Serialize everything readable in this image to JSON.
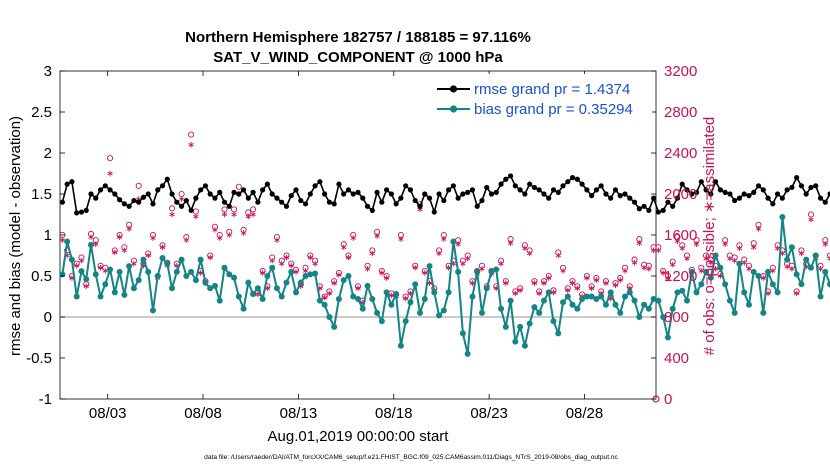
{
  "chart_data": {
    "type": "line",
    "title_line1": "Northern Hemisphere 182757 / 188185 = 97.116%",
    "title_line2": "SAT_V_WIND_COMPONENT @ 1000 hPa",
    "ylabel_left": "rmse and bias (model - observation)",
    "ylabel_right": "# of obs: o=possible; ∗=assimilated",
    "xlabel": "Aug.01,2019 00:00:00 start",
    "footer": "data file: /Users/raeder/DAI/ATM_forcXX/CAM6_setup/f.e21.FHIST_BGC.f09_025.CAM6assim.011/Diags_NTrS_2019-08/obs_diag_output.nc",
    "ylim_left": [
      -1,
      3
    ],
    "ylim_right": [
      0,
      3200
    ],
    "xlim_days": [
      0.5,
      31.75
    ],
    "left_ticks": [
      -1,
      -0.5,
      0,
      0.5,
      1,
      1.5,
      2,
      2.5,
      3
    ],
    "left_tick_labels": [
      "-1",
      "-0.5",
      "0",
      "0.5",
      "1",
      "1.5",
      "2",
      "2.5",
      "3"
    ],
    "right_ticks": [
      0,
      400,
      800,
      1200,
      1600,
      2000,
      2400,
      2800,
      3200
    ],
    "right_tick_labels": [
      "0",
      "400",
      "800",
      "1200",
      "1600",
      "2000",
      "2400",
      "2800",
      "3200"
    ],
    "x_ticks": [
      3,
      8,
      13,
      18,
      23,
      28
    ],
    "x_tick_labels": [
      "08/03",
      "08/08",
      "08/13",
      "08/18",
      "08/23",
      "08/28"
    ],
    "legend": {
      "position": "top-right",
      "rmse_label": "rmse grand pr = 1.4374",
      "bias_label": "bias grand pr = 0.35294"
    },
    "colors": {
      "rmse": "#000000",
      "bias": "#138585",
      "obs": "#cc1155",
      "legend_text": "#1a4fd6",
      "zero_line": "#bbbbbb"
    },
    "start_day": 0.625,
    "step_days": 0.25,
    "series": [
      {
        "name": "rmse",
        "axis": "left",
        "values": [
          1.4,
          1.62,
          1.65,
          1.27,
          1.28,
          1.3,
          1.5,
          1.45,
          1.55,
          1.6,
          1.55,
          1.5,
          1.43,
          1.38,
          1.35,
          1.42,
          1.4,
          1.46,
          1.5,
          1.38,
          1.55,
          1.6,
          1.68,
          1.5,
          1.4,
          1.35,
          1.42,
          1.3,
          1.45,
          1.55,
          1.6,
          1.5,
          1.45,
          1.52,
          1.4,
          1.35,
          1.52,
          1.5,
          1.55,
          1.45,
          1.52,
          1.4,
          1.55,
          1.62,
          1.5,
          1.45,
          1.4,
          1.35,
          1.48,
          1.55,
          1.42,
          1.38,
          1.5,
          1.6,
          1.65,
          1.5,
          1.4,
          1.38,
          1.62,
          1.5,
          1.55,
          1.5,
          1.52,
          1.45,
          1.35,
          1.3,
          1.52,
          1.4,
          1.55,
          1.5,
          1.38,
          1.45,
          1.6,
          1.55,
          1.42,
          1.35,
          1.5,
          1.45,
          1.28,
          1.5,
          1.42,
          1.55,
          1.6,
          1.45,
          1.5,
          1.52,
          1.55,
          1.35,
          1.42,
          1.58,
          1.5,
          1.52,
          1.62,
          1.68,
          1.72,
          1.6,
          1.55,
          1.5,
          1.62,
          1.58,
          1.55,
          1.5,
          1.45,
          1.55,
          1.52,
          1.6,
          1.65,
          1.7,
          1.68,
          1.62,
          1.55,
          1.48,
          1.55,
          1.6,
          1.5,
          1.45,
          1.55,
          1.48,
          1.5,
          1.45,
          1.4,
          1.32,
          1.35,
          1.3,
          1.45,
          1.28,
          1.3,
          1.4,
          1.35,
          1.45,
          1.62,
          1.55,
          1.5,
          1.52,
          1.65,
          1.55,
          1.5,
          1.65,
          1.55,
          1.52,
          1.5,
          1.42,
          1.45,
          1.5,
          1.48,
          1.52,
          1.6,
          1.55,
          1.45,
          1.38,
          1.5,
          1.45,
          1.55,
          1.58,
          1.7,
          1.6,
          1.5,
          1.58,
          1.6,
          1.45,
          1.4,
          1.5,
          1.48,
          1.55,
          1.5,
          1.58,
          1.6,
          1.45,
          1.42,
          1.48,
          1.45,
          1.5,
          1.58,
          1.5,
          1.4,
          1.52,
          1.38,
          1.55,
          1.6,
          1.5,
          1.42,
          1.48,
          1.45,
          1.4,
          1.38,
          1.42,
          1.35,
          1.5,
          1.48,
          1.52,
          1.4,
          1.48,
          1.6,
          1.65,
          1.58,
          1.55,
          1.5,
          1.6,
          1.45,
          1.52,
          1.5,
          1.45,
          1.45
        ]
      },
      {
        "name": "bias",
        "axis": "left",
        "values": [
          0.52,
          0.92,
          0.7,
          0.25,
          0.56,
          0.46,
          0.88,
          0.52,
          0.25,
          0.4,
          0.58,
          0.3,
          0.55,
          0.27,
          0.62,
          0.35,
          0.45,
          0.7,
          0.55,
          0.08,
          0.5,
          0.72,
          0.65,
          0.35,
          0.55,
          0.7,
          0.5,
          0.55,
          0.45,
          0.7,
          0.42,
          0.35,
          0.38,
          0.2,
          0.6,
          0.52,
          0.48,
          0.25,
          0.1,
          0.42,
          0.28,
          0.35,
          0.22,
          0.5,
          0.6,
          0.35,
          0.25,
          0.42,
          0.55,
          0.3,
          0.42,
          0.5,
          0.52,
          0.53,
          0.2,
          0.15,
          0.0,
          -0.12,
          0.22,
          0.45,
          0.5,
          0.25,
          0.22,
          0.1,
          0.38,
          0.22,
          0.05,
          -0.05,
          0.3,
          0.15,
          0.28,
          -0.35,
          -0.05,
          0.18,
          0.4,
          0.05,
          0.22,
          0.62,
          0.3,
          0.02,
          0.08,
          0.3,
          0.92,
          0.55,
          -0.2,
          -0.45,
          0.25,
          0.55,
          0.05,
          0.35,
          0.55,
          0.58,
          0.1,
          -0.12,
          0.2,
          -0.3,
          -0.12,
          -0.35,
          -0.08,
          0.12,
          0.05,
          0.2,
          0.3,
          -0.05,
          -0.2,
          0.18,
          0.25,
          0.15,
          0.1,
          0.22,
          0.25,
          0.25,
          0.22,
          0.25,
          0.15,
          0.3,
          0.15,
          0.05,
          0.25,
          0.3,
          0.2,
          0.0,
          0.15,
          0.1,
          0.22,
          0.2,
          0.0,
          -0.25,
          0.1,
          0.3,
          0.32,
          0.2,
          0.55,
          0.3,
          0.4,
          0.55,
          0.48,
          0.75,
          0.6,
          0.4,
          0.2,
          0.05,
          0.65,
          0.3,
          0.15,
          0.55,
          0.5,
          0.05,
          0.55,
          0.4,
          0.3,
          1.22,
          0.7,
          0.85,
          0.52,
          0.4,
          0.7,
          0.6,
          0.75,
          0.25,
          0.55,
          0.4,
          0.15,
          0.5,
          0.1,
          0.4,
          0.55,
          0.2,
          0.45,
          0.3,
          0.05,
          0.55,
          0.35,
          0.3,
          0.35,
          0.2,
          0.55,
          0.4,
          0.25,
          0.05,
          0.55,
          0.4,
          0.75,
          0.5,
          0.3,
          0.15,
          0.55,
          0.65,
          0.3,
          0.22,
          0.95,
          0.55,
          0.35,
          0.5,
          0.55,
          0.28,
          0.2,
          0.3,
          0.82,
          0.7,
          0.45,
          0.22,
          0.55,
          0.4,
          0.65,
          0.45,
          0.52
        ]
      },
      {
        "name": "possible",
        "axis": "right",
        "values": [
          1600,
          1450,
          1200,
          1320,
          1380,
          1120,
          1610,
          1550,
          1300,
          1280,
          2350,
          1450,
          1600,
          1480,
          1700,
          1350,
          2080,
          1320,
          1420,
          1600,
          1200,
          1500,
          1330,
          1860,
          1320,
          2000,
          1580,
          2580,
          1830,
          1250,
          1150,
          1400,
          1680,
          1600,
          1850,
          1630,
          1850,
          2070,
          1650,
          1820,
          1850,
          1050,
          1250,
          1100,
          1380,
          1580,
          1350,
          1400,
          1320,
          1260,
          1120,
          1280,
          1400,
          1350,
          1100,
          1000,
          1050,
          1150,
          1230,
          1510,
          1400,
          1600,
          1100,
          960,
          1300,
          1450,
          1630,
          1250,
          1200,
          1030,
          1020,
          1600,
          1000,
          1050,
          1300,
          1900,
          1250,
          1150,
          1080,
          1450,
          1600,
          1300,
          1350,
          1550,
          1350,
          1400,
          1150,
          1250,
          1300,
          1100,
          1250,
          1100,
          1350,
          1150,
          1560,
          1050,
          1080,
          1500,
          1450,
          1150,
          1050,
          1150,
          1200,
          1060,
          1430,
          1280,
          1080,
          1150,
          1100,
          1020,
          1200,
          1100,
          1180,
          1050,
          1150,
          1000,
          1130,
          1180,
          1280,
          1100,
          1360,
          1560,
          1310,
          1300,
          1480,
          1480,
          1250,
          1200,
          1340,
          1580,
          1500,
          1400,
          1260,
          1550,
          1280,
          1400,
          1360,
          1300,
          1220,
          1550,
          1400,
          1380,
          1500,
          1360,
          1300,
          1520,
          1700,
          1200,
          1050,
          1280,
          1500,
          1450,
          1320,
          1300,
          1050,
          1450,
          1320,
          1800,
          1400,
          1300,
          1550,
          1400,
          1350,
          1500,
          1900,
          1680,
          1300,
          1600,
          1350,
          1320,
          1400,
          1520,
          1250,
          1500,
          1380,
          1500,
          1450,
          1400,
          1600,
          1250,
          1550,
          1530,
          1200,
          1580,
          1700,
          1550,
          1480,
          1300,
          1800,
          1600,
          1700,
          1500,
          1400,
          1500,
          2000,
          2200,
          1500,
          1300,
          1500,
          1400,
          1600,
          1500,
          1550,
          2100,
          1800,
          1700,
          1550,
          1400,
          1450,
          1900
        ]
      },
      {
        "name": "assimilated",
        "axis": "right",
        "values": [
          1550,
          1400,
          1180,
          1300,
          1350,
          1100,
          1580,
          1510,
          1280,
          1250,
          2200,
          1430,
          1580,
          1450,
          1660,
          1320,
          1950,
          1300,
          1400,
          1570,
          1180,
          1480,
          1300,
          1800,
          1300,
          1950,
          1550,
          2480,
          1780,
          1230,
          1130,
          1380,
          1650,
          1570,
          1800,
          1600,
          1800,
          2000,
          1620,
          1780,
          1800,
          1020,
          1230,
          1080,
          1350,
          1550,
          1320,
          1380,
          1300,
          1240,
          1100,
          1250,
          1380,
          1320,
          1080,
          990,
          1030,
          1130,
          1210,
          1480,
          1380,
          1570,
          1080,
          940,
          1270,
          1420,
          1590,
          1230,
          1180,
          1010,
          1000,
          1560,
          980,
          1030,
          1280,
          1850,
          1230,
          1130,
          1060,
          1420,
          1560,
          1280,
          1320,
          1510,
          1320,
          1370,
          1130,
          1220,
          1270,
          1080,
          1220,
          1080,
          1320,
          1130,
          1520,
          1030,
          1060,
          1470,
          1420,
          1130,
          1030,
          1130,
          1180,
          1040,
          1400,
          1250,
          1060,
          1130,
          1080,
          1000,
          1180,
          1080,
          1160,
          1030,
          1130,
          980,
          1110,
          1160,
          1250,
          1080,
          1330,
          1520,
          1280,
          1270,
          1450,
          1450,
          1230,
          1180,
          1310,
          1540,
          1470,
          1370,
          1240,
          1510,
          1250,
          1370,
          1330,
          1270,
          1200,
          1510,
          1370,
          1350,
          1470,
          1330,
          1270,
          1480,
          1660,
          1180,
          1030,
          1250,
          1470,
          1420,
          1290,
          1270,
          1030,
          1420,
          1290,
          1750,
          1370,
          1270,
          1510,
          1370,
          1320,
          1470,
          1850,
          1640,
          1270,
          1560,
          1320,
          1290,
          1370,
          1480,
          1230,
          1470,
          1350,
          1470,
          1420,
          1370,
          1560,
          1230,
          1510,
          1490,
          1180,
          1540,
          1660,
          1510,
          1450,
          1270,
          1750,
          1560,
          1660,
          1470,
          1370,
          1470,
          1950,
          2150,
          1470,
          1270,
          1470,
          1370,
          1560,
          1470,
          1510,
          2050,
          1750,
          1660,
          1510,
          1370,
          1420,
          1850
        ]
      }
    ]
  }
}
